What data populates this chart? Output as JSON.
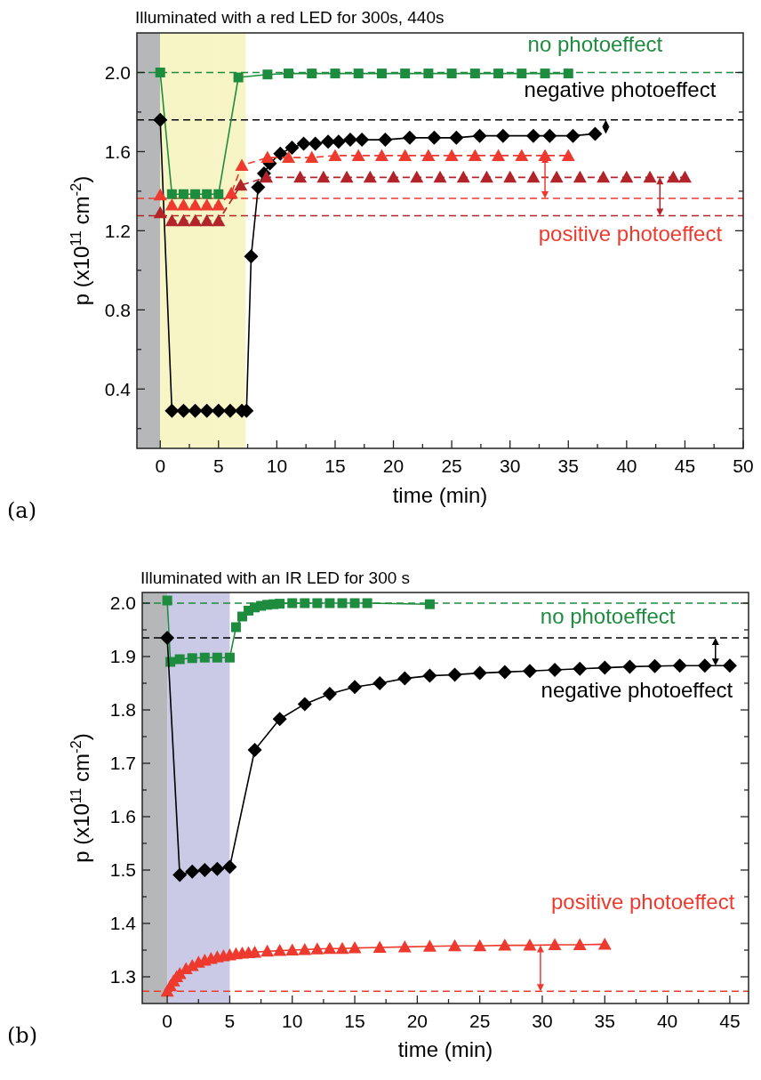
{
  "chart_data": [
    {
      "type": "line",
      "title": "Illuminated with a red LED for 300s, 440s",
      "xlabel": "time (min)",
      "ylabel": "p (x10$^{11}$ cm$^{-2}$)",
      "xlim": [
        -2,
        50
      ],
      "xticks": [
        0,
        {
          "value": 2.5,
          "label": null
        },
        5,
        {
          "value": 7.5,
          "label": null
        },
        10,
        {
          "value": 12.5,
          "label": null
        },
        15,
        {
          "value": 17.5,
          "label": null
        },
        20,
        {
          "value": 22.5,
          "label": null
        },
        25,
        {
          "value": 27.5,
          "label": null
        },
        30,
        {
          "value": 32.5,
          "label": null
        },
        35,
        {
          "value": 37.5,
          "label": null
        },
        40,
        {
          "value": 42.5,
          "label": null
        },
        45,
        {
          "value": 47.5,
          "label": null
        },
        50
      ],
      "ylim": [
        0.1,
        2.2
      ],
      "yticks": [
        {
          "value": 0.2,
          "label": null
        },
        0.4,
        {
          "value": 0.6,
          "label": null
        },
        0.8,
        {
          "value": 1.0,
          "label": null
        },
        1.2,
        {
          "value": 1.4,
          "label": null
        },
        1.6,
        {
          "value": 1.8,
          "label": null
        },
        {
          "value": 2.0,
          "label": "2.0"
        }
      ],
      "bands": [
        {
          "axis": "x",
          "from": -2,
          "to": 0,
          "color": "#b5b7b9"
        },
        {
          "axis": "x",
          "from": 0,
          "to": 5,
          "color": "#f7f5c6"
        },
        {
          "axis": "x",
          "from": 5,
          "to": 7.33,
          "color": "#f7f5c6"
        }
      ],
      "ref_lines": [
        {
          "axis": "y",
          "value": 2.0,
          "color": "#1e8c3e",
          "line_style": "dashed"
        },
        {
          "axis": "y",
          "value": 1.76,
          "color": "#000000",
          "line_style": "dashed"
        },
        {
          "axis": "y",
          "value": 1.364,
          "color": "#ee3a2e",
          "line_style": "dashed"
        },
        {
          "axis": "y",
          "value": 1.276,
          "color": "#b3232a",
          "line_style": "dashed"
        }
      ],
      "series": [
        {
          "name": "no photoeffect",
          "color": "#1e8c3e",
          "marker": "square",
          "line_style": "solid",
          "x": [
            0,
            1,
            2,
            3,
            4,
            5,
            6.7,
            9.2,
            11,
            13,
            15,
            17,
            19,
            21,
            23,
            25,
            27,
            29,
            31,
            33,
            35
          ],
          "values": [
            2.0,
            1.385,
            1.385,
            1.385,
            1.385,
            1.385,
            1.975,
            1.99,
            1.995,
            1.995,
            1.995,
            1.995,
            1.995,
            1.995,
            1.995,
            1.995,
            1.995,
            1.995,
            1.995,
            1.995,
            1.995
          ]
        },
        {
          "name": "negative photoeffect",
          "color": "#000000",
          "marker": "diamond",
          "line_style": "solid",
          "x": [
            0,
            1,
            2,
            3,
            4,
            5,
            6,
            7,
            7.4,
            7.8,
            8.4,
            8.9,
            9.4,
            10.3,
            11.3,
            12.3,
            13.3,
            14.4,
            15.3,
            16.3,
            17.3,
            19.3,
            21.4,
            23.5,
            25.4,
            27.4,
            29.4,
            32,
            33.4,
            35.4,
            37.3
          ],
          "values": [
            1.76,
            0.29,
            0.29,
            0.29,
            0.29,
            0.29,
            0.29,
            0.29,
            0.29,
            1.07,
            1.42,
            1.49,
            1.54,
            1.59,
            1.62,
            1.64,
            1.64,
            1.65,
            1.65,
            1.66,
            1.66,
            1.66,
            1.67,
            1.67,
            1.67,
            1.68,
            1.68,
            1.68,
            1.68,
            1.68,
            1.69
          ]
        },
        {
          "name": "positive photoeffect",
          "color": "#ee3a2e",
          "marker": "triangle",
          "line_style": "dashed",
          "x": [
            0,
            1,
            2,
            3,
            4,
            5,
            6.1,
            7,
            9.2,
            11,
            13,
            15,
            17,
            19,
            21,
            23,
            25,
            27,
            29,
            31,
            33,
            35
          ],
          "values": [
            1.38,
            1.33,
            1.33,
            1.33,
            1.33,
            1.33,
            1.39,
            1.53,
            1.57,
            1.57,
            1.57,
            1.58,
            1.58,
            1.58,
            1.58,
            1.58,
            1.58,
            1.58,
            1.58,
            1.58,
            1.58,
            1.58
          ]
        },
        {
          "color": "#b3232a",
          "marker": "triangle",
          "line_style": "dashed",
          "x": [
            0,
            1,
            2,
            3,
            4,
            5,
            6.9,
            9.1,
            12,
            14,
            16,
            18,
            20,
            22,
            24,
            26,
            28,
            30,
            32,
            34,
            36,
            38,
            40,
            42,
            44,
            45
          ],
          "values": [
            1.29,
            1.25,
            1.25,
            1.25,
            1.25,
            1.25,
            1.43,
            1.47,
            1.47,
            1.47,
            1.47,
            1.47,
            1.47,
            1.47,
            1.47,
            1.47,
            1.47,
            1.47,
            1.47,
            1.47,
            1.47,
            1.47,
            1.47,
            1.47,
            1.47,
            1.47
          ]
        }
      ],
      "annotations": [
        "(a)"
      ]
    },
    {
      "type": "line",
      "title": "Illuminated with an IR LED for 300 s",
      "xlabel": "time (min)",
      "ylabel": "p (x10$^{11}$ cm$^{-2}$)",
      "xlim": [
        -2,
        46.5
      ],
      "xticks": [
        0,
        {
          "value": 2.5,
          "label": null
        },
        5,
        {
          "value": 7.5,
          "label": null
        },
        10,
        {
          "value": 12.5,
          "label": null
        },
        15,
        {
          "value": 17.5,
          "label": null
        },
        20,
        {
          "value": 22.5,
          "label": null
        },
        25,
        {
          "value": 27.5,
          "label": null
        },
        30,
        {
          "value": 32.5,
          "label": null
        },
        35,
        {
          "value": 37.5,
          "label": null
        },
        40,
        {
          "value": 42.5,
          "label": null
        },
        45
      ],
      "ylim": [
        1.25,
        2.02
      ],
      "yticks": [
        1.3,
        {
          "value": 1.35,
          "label": null
        },
        1.4,
        {
          "value": 1.45,
          "label": null
        },
        1.5,
        {
          "value": 1.55,
          "label": null
        },
        1.6,
        {
          "value": 1.65,
          "label": null
        },
        1.7,
        {
          "value": 1.75,
          "label": null
        },
        1.8,
        {
          "value": 1.85,
          "label": null
        },
        1.9,
        {
          "value": 1.95,
          "label": null
        },
        {
          "value": 2.0,
          "label": "2.0"
        }
      ],
      "bands": [
        {
          "axis": "x",
          "from": -2,
          "to": 0,
          "color": "#b5b7b9"
        },
        {
          "axis": "x",
          "from": 0,
          "to": 5,
          "color": "#cacae6"
        }
      ],
      "ref_lines": [
        {
          "axis": "y",
          "value": 2.0,
          "color": "#1e8c3e",
          "line_style": "dashed"
        },
        {
          "axis": "y",
          "value": 1.935,
          "color": "#000000",
          "line_style": "dashed"
        },
        {
          "axis": "y",
          "value": 1.273,
          "color": "#ee3a2e",
          "line_style": "dashed"
        }
      ],
      "series": [
        {
          "name": "no photoeffect",
          "color": "#1e8c3e",
          "marker": "square",
          "line_style": "solid",
          "x": [
            0,
            0.25,
            1,
            2,
            3,
            4,
            5,
            5.5,
            6,
            6.5,
            7,
            7.5,
            8,
            8.5,
            9,
            10,
            11,
            12,
            13,
            14,
            15,
            16,
            21
          ],
          "values": [
            2.005,
            1.89,
            1.895,
            1.897,
            1.898,
            1.898,
            1.898,
            1.955,
            1.975,
            1.986,
            1.992,
            1.995,
            1.997,
            1.998,
            1.999,
            2.0,
            2.0,
            2.0,
            2.0,
            2.0,
            2.0,
            2.0,
            1.998
          ]
        },
        {
          "name": "negative photoeffect",
          "color": "#000000",
          "marker": "diamond",
          "line_style": "solid",
          "x": [
            0,
            1,
            2,
            3,
            4,
            5,
            7,
            9,
            11,
            13,
            15,
            17,
            19,
            21,
            23,
            25,
            27,
            29,
            31,
            33,
            35,
            37,
            39,
            41,
            43,
            45
          ],
          "values": [
            1.935,
            1.491,
            1.497,
            1.5,
            1.502,
            1.506,
            1.725,
            1.783,
            1.811,
            1.83,
            1.843,
            1.85,
            1.859,
            1.864,
            1.866,
            1.869,
            1.871,
            1.873,
            1.875,
            1.877,
            1.879,
            1.881,
            1.882,
            1.883,
            1.883,
            1.883
          ]
        },
        {
          "name": "positive photoeffect",
          "color": "#ee3a2e",
          "marker": "triangle",
          "line_style": "solid",
          "x": [
            0,
            0.25,
            0.5,
            0.75,
            1,
            1.5,
            2,
            2.5,
            3,
            3.5,
            4,
            4.5,
            5,
            5.5,
            6,
            6.5,
            7,
            8,
            9,
            10,
            11,
            12,
            13,
            14,
            15,
            17,
            19,
            21,
            23,
            25,
            27,
            29,
            31,
            33,
            35
          ],
          "values": [
            1.273,
            1.283,
            1.292,
            1.3,
            1.306,
            1.315,
            1.321,
            1.327,
            1.331,
            1.334,
            1.337,
            1.339,
            1.341,
            1.343,
            1.344,
            1.345,
            1.346,
            1.348,
            1.349,
            1.35,
            1.351,
            1.352,
            1.353,
            1.353,
            1.354,
            1.355,
            1.356,
            1.357,
            1.358,
            1.358,
            1.359,
            1.359,
            1.36,
            1.36,
            1.361
          ]
        }
      ],
      "annotations": [
        "(b)"
      ]
    }
  ]
}
